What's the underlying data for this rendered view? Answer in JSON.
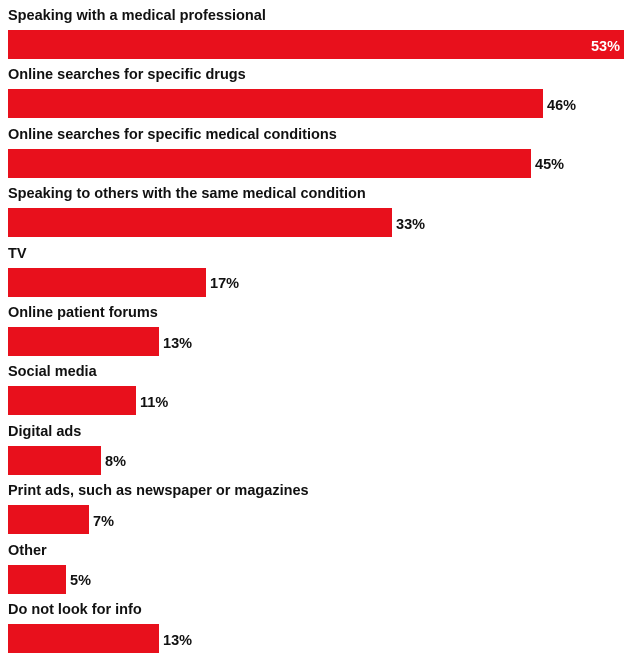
{
  "chart_data": {
    "type": "bar",
    "orientation": "horizontal",
    "title": "",
    "xlabel": "",
    "ylabel": "",
    "xlim": [
      0,
      53
    ],
    "grid": false,
    "legend": "none",
    "bar_color": "#e8101c",
    "categories": [
      "Speaking with a medical professional",
      "Online searches for specific drugs",
      "Online searches for specific medical conditions",
      "Speaking to others with the same medical condition",
      "TV",
      "Online patient forums",
      "Social media",
      "Digital ads",
      "Print ads, such as newspaper or magazines",
      "Other",
      "Do not look for info"
    ],
    "values": [
      53,
      46,
      45,
      33,
      17,
      13,
      11,
      8,
      7,
      5,
      13
    ],
    "value_labels": [
      "53%",
      "46%",
      "45%",
      "33%",
      "17%",
      "13%",
      "11%",
      "8%",
      "7%",
      "5%",
      "13%"
    ]
  }
}
